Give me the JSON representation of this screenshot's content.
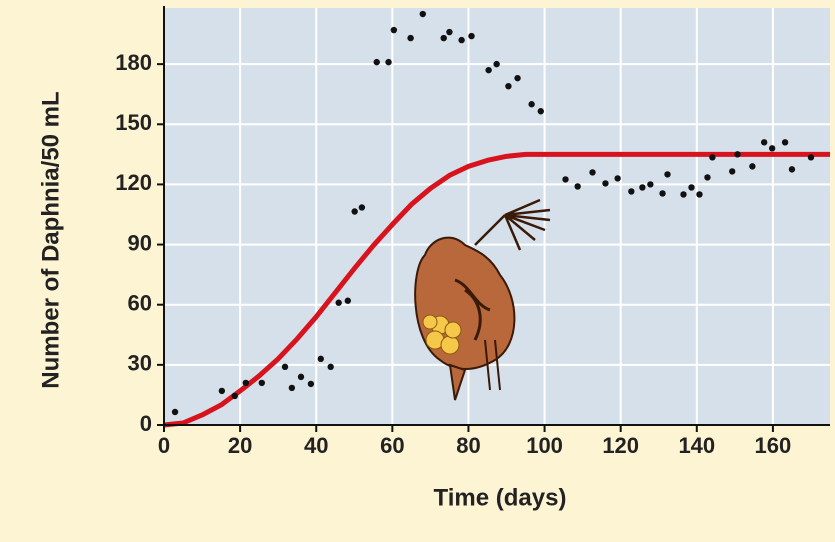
{
  "chart_data": {
    "type": "scatter",
    "x_label": "Time (days)",
    "y_label": "Number of Daphnia/50 mL",
    "xlim": [
      0,
      175
    ],
    "ylim": [
      0,
      208
    ],
    "xticks": [
      0,
      20,
      40,
      60,
      80,
      100,
      120,
      140,
      160
    ],
    "yticks": [
      0,
      30,
      60,
      90,
      120,
      150,
      180
    ],
    "grid": true,
    "series": [
      {
        "type": "scatter",
        "color": "#111111",
        "x": [
          2.9,
          15.2,
          18.6,
          21.5,
          25.7,
          31.8,
          33.6,
          36,
          38.6,
          41.2,
          43.8,
          45.9,
          48.3,
          50.1,
          52,
          55.9,
          59,
          60.4,
          64.8,
          68,
          73.5,
          75,
          78.2,
          80.8,
          85.3,
          87.4,
          90.5,
          92.9,
          96.6,
          99,
          105.5,
          108.7,
          112.6,
          116,
          119.2,
          122.8,
          125.7,
          127.8,
          131,
          132.3,
          136.5,
          138.6,
          140.7,
          142.8,
          144.1,
          149.3,
          150.7,
          154.6,
          157.7,
          159.8,
          163.2,
          165,
          170
        ],
        "values": [
          6.5,
          17,
          14.5,
          21,
          21,
          29,
          18.5,
          24,
          20.5,
          33,
          29,
          61,
          62,
          106.5,
          108.5,
          181,
          181,
          197,
          193,
          205,
          193,
          196,
          192,
          194,
          177,
          180,
          169,
          173,
          160,
          156.5,
          122.5,
          119,
          126,
          120.5,
          123,
          116.5,
          118.5,
          120,
          115.5,
          125,
          115,
          118.5,
          115,
          123.5,
          133.5,
          126.5,
          135,
          129,
          141,
          138,
          141,
          127.5,
          133.5
        ]
      },
      {
        "type": "line",
        "color": "#d7141e",
        "x": [
          0,
          5,
          10,
          15,
          20,
          25,
          30,
          35,
          40,
          45,
          50,
          55,
          60,
          65,
          70,
          75,
          80,
          85,
          90,
          95,
          100,
          120,
          140,
          160,
          175
        ],
        "values": [
          0,
          1,
          5,
          10,
          17,
          24.5,
          33,
          43,
          54,
          66,
          78,
          89.5,
          100,
          110,
          118,
          124.5,
          129,
          132,
          134,
          135,
          135,
          135,
          135,
          135,
          135
        ]
      }
    ]
  }
}
